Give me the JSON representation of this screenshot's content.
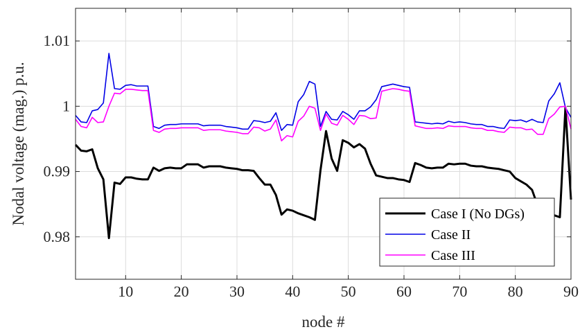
{
  "chart_data": {
    "type": "line",
    "xlabel": "node #",
    "ylabel": "Nodal voltage (mag.) p.u.",
    "xlim": [
      1,
      90
    ],
    "ylim": [
      0.9735,
      1.015
    ],
    "xticks": [
      10,
      20,
      30,
      40,
      50,
      60,
      70,
      80,
      90
    ],
    "xtick_labels": [
      "10",
      "20",
      "30",
      "40",
      "50",
      "60",
      "70",
      "80",
      "90"
    ],
    "yticks": [
      0.98,
      0.99,
      1.0,
      1.01
    ],
    "ytick_labels": [
      "0.98",
      "0.99",
      "1",
      "1.01"
    ],
    "grid": true,
    "legend_position": "bottom-right",
    "series": [
      {
        "name": "Case I (No DGs)",
        "color": "#000000",
        "values": [
          0.9941,
          0.9932,
          0.9931,
          0.9934,
          0.9905,
          0.9888,
          0.9798,
          0.9883,
          0.9881,
          0.9891,
          0.9891,
          0.9889,
          0.9888,
          0.9888,
          0.9906,
          0.9901,
          0.9905,
          0.9906,
          0.9905,
          0.9905,
          0.9911,
          0.9911,
          0.9911,
          0.9906,
          0.9908,
          0.9908,
          0.9908,
          0.9906,
          0.9905,
          0.9904,
          0.9902,
          0.9902,
          0.9901,
          0.989,
          0.988,
          0.988,
          0.9864,
          0.9834,
          0.9842,
          0.984,
          0.9836,
          0.9833,
          0.983,
          0.9826,
          0.9902,
          0.9962,
          0.992,
          0.9901,
          0.9948,
          0.9944,
          0.9937,
          0.9942,
          0.9935,
          0.9912,
          0.9894,
          0.9892,
          0.989,
          0.989,
          0.9888,
          0.9887,
          0.9884,
          0.9913,
          0.991,
          0.9906,
          0.9905,
          0.9906,
          0.9906,
          0.9912,
          0.9911,
          0.9912,
          0.9912,
          0.9909,
          0.9908,
          0.9908,
          0.9906,
          0.9905,
          0.9904,
          0.9902,
          0.99,
          0.989,
          0.9885,
          0.988,
          0.9872,
          0.9848,
          0.9845,
          0.9836,
          0.9833,
          0.983,
          0.9998,
          0.9857
        ]
      },
      {
        "name": "Case II",
        "color": "#0000e6",
        "values": [
          0.9986,
          0.9976,
          0.9975,
          0.9993,
          0.9995,
          1.0005,
          1.0081,
          1.0027,
          1.0026,
          1.0032,
          1.0033,
          1.0031,
          1.0031,
          1.0031,
          0.9969,
          0.9966,
          0.9971,
          0.9972,
          0.9972,
          0.9973,
          0.9973,
          0.9973,
          0.9973,
          0.997,
          0.9971,
          0.9971,
          0.9971,
          0.9969,
          0.9968,
          0.9967,
          0.9965,
          0.9965,
          0.9978,
          0.9977,
          0.9975,
          0.9977,
          0.999,
          0.9963,
          0.9972,
          0.9971,
          1.0007,
          1.0018,
          1.0038,
          1.0034,
          0.9969,
          0.9992,
          0.998,
          0.9979,
          0.9992,
          0.9987,
          0.998,
          0.9993,
          0.9993,
          0.9999,
          1.001,
          1.003,
          1.0032,
          1.0034,
          1.0032,
          1.003,
          1.0029,
          0.9976,
          0.9975,
          0.9974,
          0.9973,
          0.9974,
          0.9973,
          0.9977,
          0.9975,
          0.9976,
          0.9975,
          0.9973,
          0.9972,
          0.9972,
          0.9969,
          0.9969,
          0.9967,
          0.9966,
          0.9979,
          0.9978,
          0.9979,
          0.9976,
          0.998,
          0.9976,
          0.9975,
          1.0008,
          1.0019,
          1.0036,
          0.9998,
          0.9983
        ]
      },
      {
        "name": "Case III",
        "color": "#ff00ff",
        "values": [
          0.998,
          0.9969,
          0.9967,
          0.9983,
          0.9975,
          0.9976,
          1.0,
          1.002,
          1.0019,
          1.0026,
          1.0026,
          1.0025,
          1.0024,
          1.0024,
          0.9963,
          0.996,
          0.9965,
          0.9966,
          0.9966,
          0.9967,
          0.9967,
          0.9967,
          0.9967,
          0.9963,
          0.9964,
          0.9964,
          0.9964,
          0.9962,
          0.9961,
          0.996,
          0.9958,
          0.9958,
          0.9968,
          0.9967,
          0.9962,
          0.9965,
          0.9979,
          0.9947,
          0.9955,
          0.9953,
          0.9977,
          0.9985,
          1.0,
          0.9997,
          0.9963,
          0.9988,
          0.9974,
          0.9971,
          0.9986,
          0.998,
          0.9972,
          0.9986,
          0.9985,
          0.9981,
          0.9982,
          1.0023,
          1.0025,
          1.0027,
          1.0026,
          1.0024,
          1.0023,
          0.997,
          0.9968,
          0.9966,
          0.9966,
          0.9967,
          0.9966,
          0.997,
          0.9969,
          0.9969,
          0.9969,
          0.9967,
          0.9966,
          0.9966,
          0.9963,
          0.9963,
          0.9961,
          0.996,
          0.9968,
          0.9967,
          0.9967,
          0.9964,
          0.9965,
          0.9957,
          0.9957,
          0.9981,
          0.9988,
          0.9999,
          1.0,
          0.9965
        ]
      }
    ]
  }
}
